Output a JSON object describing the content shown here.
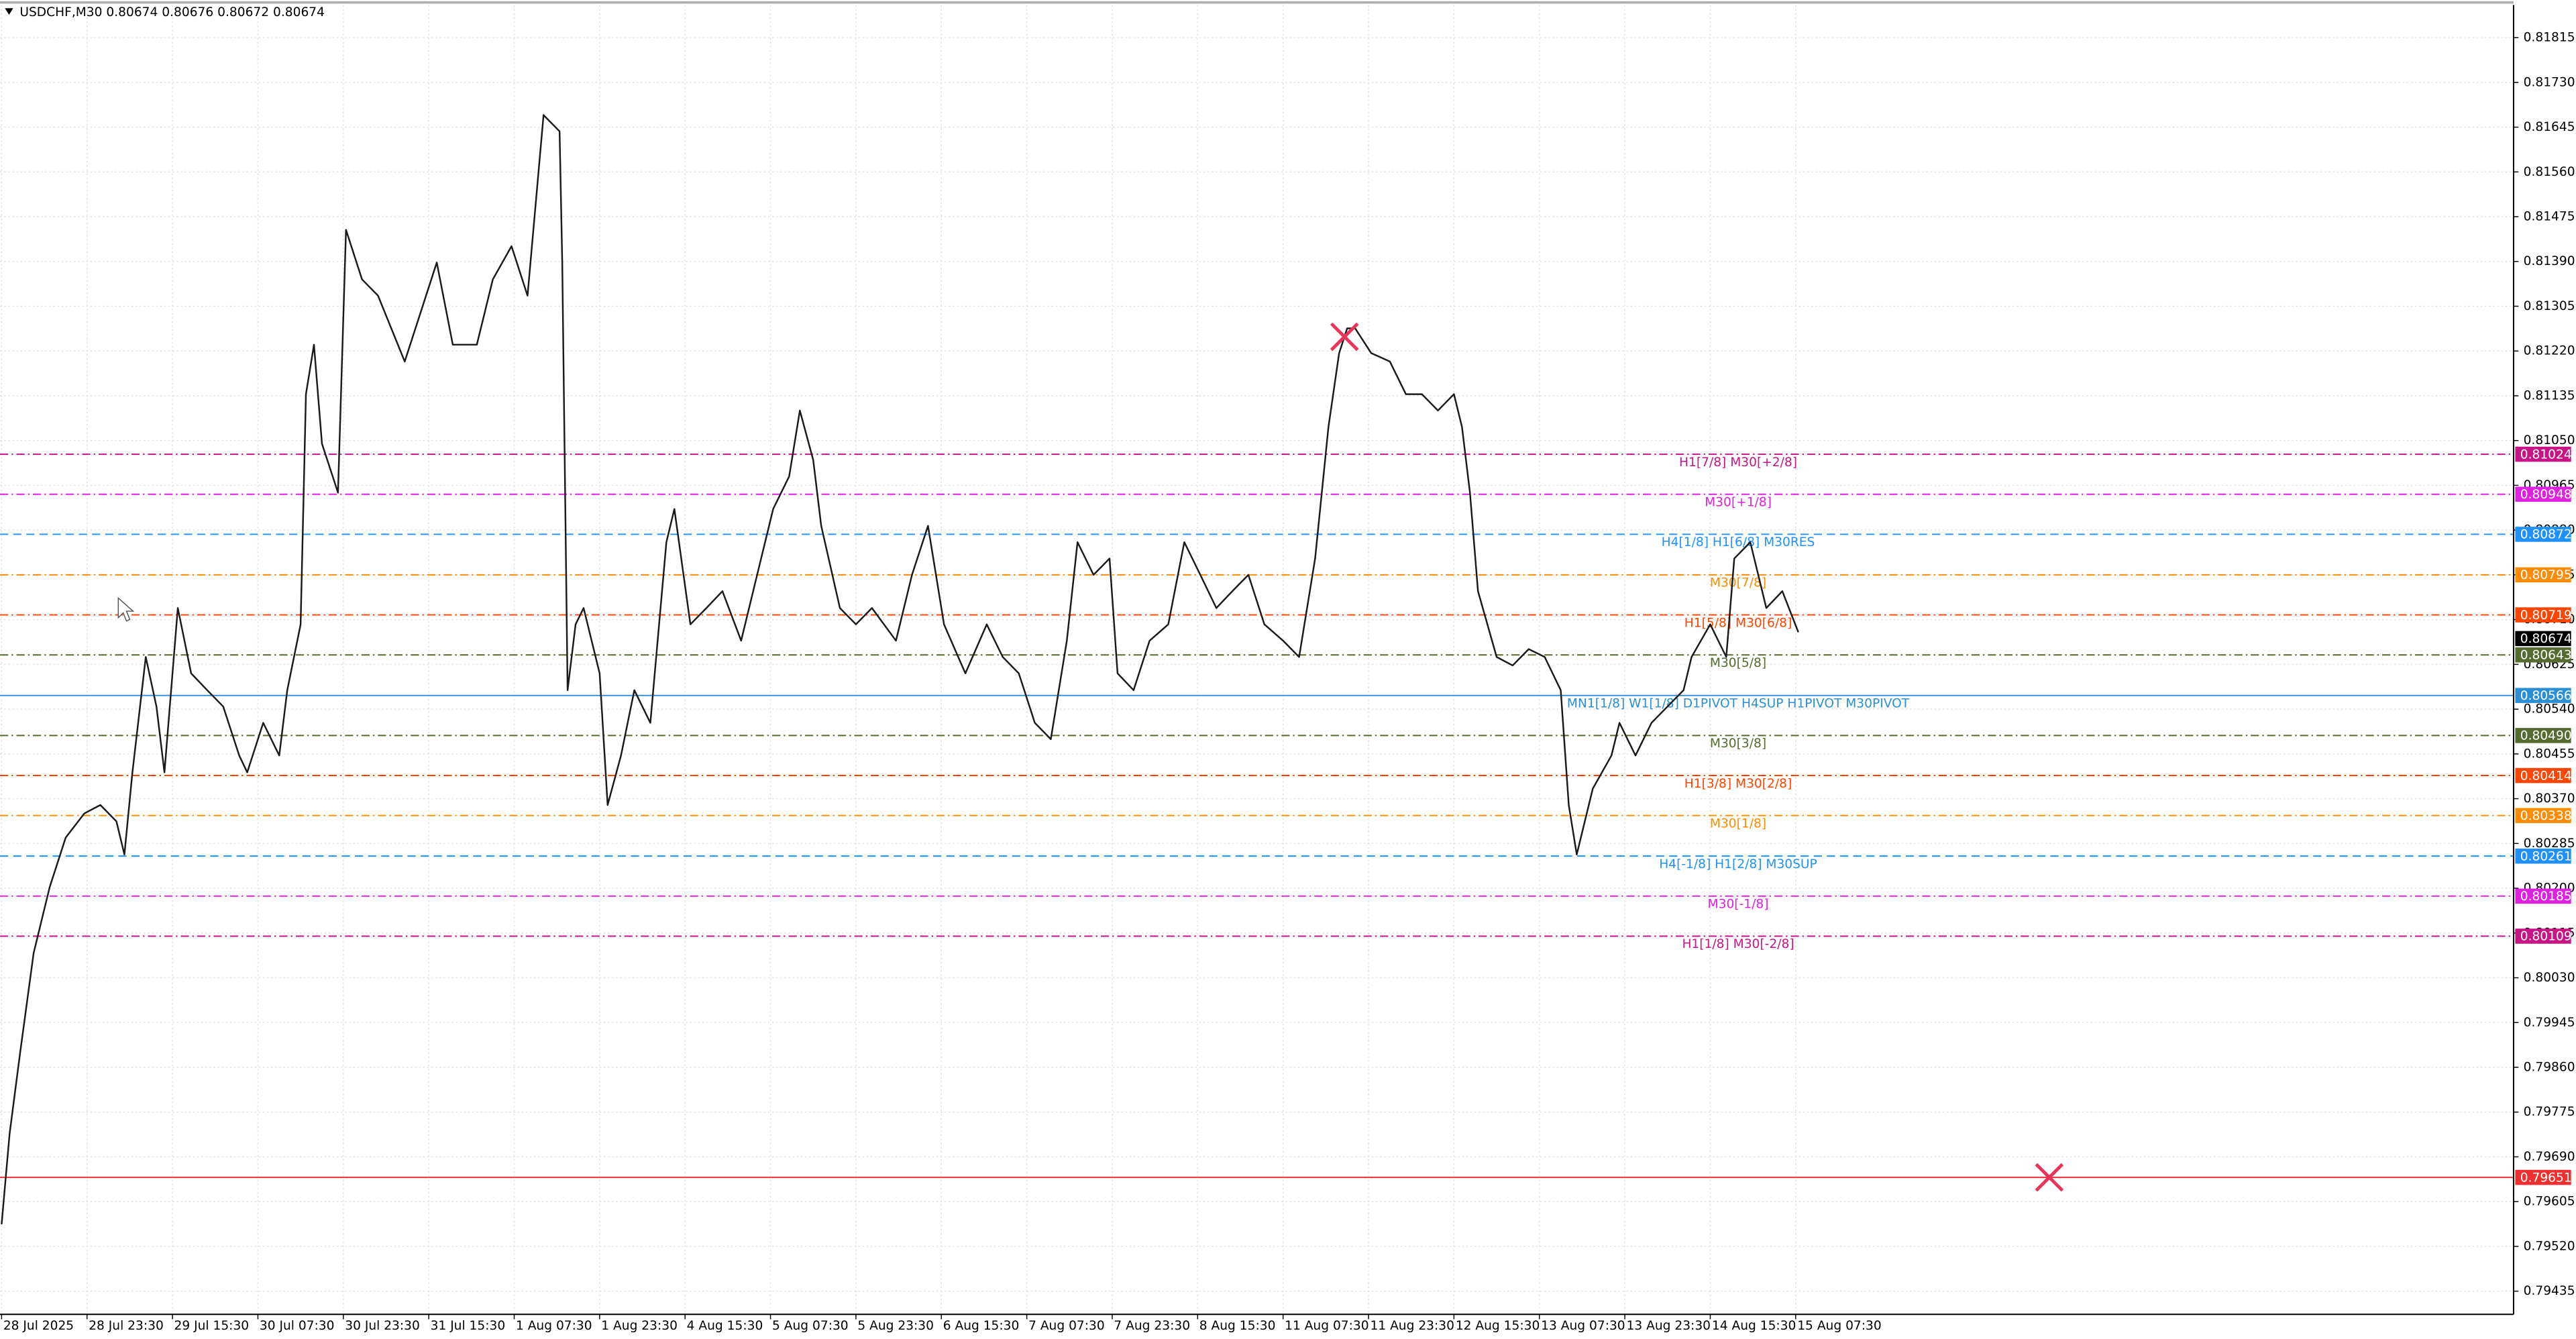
{
  "chart_data": {
    "type": "line",
    "title": "USDCHF,M30  0.80674 0.80676 0.80672 0.80674",
    "x": [
      -14,
      -11,
      -7,
      -2,
      4,
      10,
      17,
      23,
      29,
      32,
      35,
      40,
      44,
      47,
      52,
      57,
      63,
      69,
      75,
      78,
      84,
      90,
      93,
      98,
      100,
      103,
      106,
      112,
      115,
      121,
      127,
      137,
      143,
      149,
      155,
      164,
      170,
      177,
      183,
      189,
      195,
      196,
      198,
      201,
      204,
      210,
      213,
      218,
      223,
      229,
      235,
      238,
      244,
      250,
      256,
      263,
      269,
      275,
      281,
      285,
      290,
      293,
      300,
      306,
      312,
      321,
      327,
      333,
      339,
      347,
      355,
      361,
      367,
      373,
      379,
      385,
      389,
      395,
      401,
      404,
      410,
      416,
      423,
      429,
      435,
      441,
      447,
      453,
      459,
      466,
      472,
      478,
      483,
      487,
      490,
      493,
      499,
      506,
      512,
      518,
      524,
      530,
      533,
      536,
      539,
      546,
      552,
      558,
      564,
      570,
      573,
      576,
      582,
      589,
      592,
      598,
      604,
      610,
      616,
      619,
      626,
      632,
      635,
      641,
      647,
      653,
      659
    ],
    "series": [
      {
        "color": "#1a1a1a",
        "values": [
          0.79562,
          0.79734,
          0.7989,
          0.80077,
          0.80202,
          0.80296,
          0.80342,
          0.80358,
          0.80327,
          0.80264,
          0.8042,
          0.80639,
          0.80545,
          0.8042,
          0.80732,
          0.80608,
          0.80576,
          0.80545,
          0.80452,
          0.8042,
          0.80514,
          0.80452,
          0.80576,
          0.80701,
          0.81138,
          0.81232,
          0.81044,
          0.80951,
          0.8145,
          0.81356,
          0.81325,
          0.812,
          0.81294,
          0.81388,
          0.81232,
          0.81232,
          0.81356,
          0.81419,
          0.81325,
          0.81668,
          0.81637,
          0.81388,
          0.80576,
          0.80701,
          0.80732,
          0.80608,
          0.80358,
          0.80452,
          0.80576,
          0.80514,
          0.80857,
          0.8092,
          0.80701,
          0.80732,
          0.80764,
          0.8067,
          0.80795,
          0.8092,
          0.80982,
          0.81107,
          0.81013,
          0.80888,
          0.80732,
          0.80701,
          0.80732,
          0.8067,
          0.80795,
          0.80888,
          0.80701,
          0.80608,
          0.80701,
          0.80639,
          0.80608,
          0.80514,
          0.80483,
          0.8067,
          0.80857,
          0.80795,
          0.80826,
          0.80608,
          0.80576,
          0.8067,
          0.80701,
          0.80857,
          0.80795,
          0.80732,
          0.80764,
          0.80795,
          0.80701,
          0.8067,
          0.80639,
          0.80826,
          0.81076,
          0.81216,
          0.81263,
          0.81263,
          0.81216,
          0.812,
          0.81138,
          0.81138,
          0.81107,
          0.81138,
          0.81076,
          0.80951,
          0.80764,
          0.80639,
          0.80623,
          0.80654,
          0.80639,
          0.80576,
          0.80358,
          0.80264,
          0.80389,
          0.80452,
          0.80514,
          0.80452,
          0.80514,
          0.80545,
          0.80576,
          0.80639,
          0.80701,
          0.80639,
          0.80826,
          0.80857,
          0.80732,
          0.80764,
          0.80686
        ]
      }
    ],
    "xlim": [
      -14.6,
      926.9
    ],
    "ylim": [
      0.79391,
      0.81877
    ],
    "xticks": [
      {
        "value": -14,
        "label": "28 Jul 2025"
      },
      {
        "value": 18,
        "label": "28 Jul 23:30"
      },
      {
        "value": 50,
        "label": "29 Jul 15:30"
      },
      {
        "value": 82,
        "label": "30 Jul 07:30"
      },
      {
        "value": 114,
        "label": "30 Jul 23:30"
      },
      {
        "value": 146,
        "label": "31 Jul 15:30"
      },
      {
        "value": 178,
        "label": "1 Aug 07:30"
      },
      {
        "value": 210,
        "label": "1 Aug 23:30"
      },
      {
        "value": 242,
        "label": "4 Aug 15:30"
      },
      {
        "value": 274,
        "label": "5 Aug 07:30"
      },
      {
        "value": 306,
        "label": "5 Aug 23:30"
      },
      {
        "value": 338,
        "label": "6 Aug 15:30"
      },
      {
        "value": 370,
        "label": "7 Aug 07:30"
      },
      {
        "value": 402,
        "label": "7 Aug 23:30"
      },
      {
        "value": 434,
        "label": "8 Aug 15:30"
      },
      {
        "value": 466,
        "label": "11 Aug 07:30"
      },
      {
        "value": 498,
        "label": "11 Aug 23:30"
      },
      {
        "value": 530,
        "label": "12 Aug 15:30"
      },
      {
        "value": 562,
        "label": "13 Aug 07:30"
      },
      {
        "value": 594,
        "label": "13 Aug 23:30"
      },
      {
        "value": 626,
        "label": "14 Aug 15:30"
      },
      {
        "value": 658,
        "label": "15 Aug 07:30"
      }
    ],
    "yticks": [
      0.81815,
      {
        "value": 0.8173,
        "label": "0.81730"
      },
      0.81645,
      {
        "value": 0.8156,
        "label": "0.81560"
      },
      0.81475,
      {
        "value": 0.8139,
        "label": "0.81390"
      },
      0.81305,
      {
        "value": 0.8122,
        "label": "0.81220"
      },
      0.81135,
      {
        "value": 0.8105,
        "label": "0.81050"
      },
      0.80965,
      {
        "value": 0.8088,
        "label": "0.80880"
      },
      0.80795,
      {
        "value": 0.8071,
        "label": "0.80710"
      },
      0.80625,
      {
        "value": 0.8054,
        "label": "0.80540"
      },
      0.80455,
      {
        "value": 0.8037,
        "label": "0.80370"
      },
      0.80285,
      {
        "value": 0.802,
        "label": "0.80200"
      },
      0.80115,
      {
        "value": 0.8003,
        "label": "0.80030"
      },
      0.79945,
      {
        "value": 0.7986,
        "label": "0.79860"
      },
      0.79775,
      {
        "value": 0.7969,
        "label": "0.79690"
      },
      0.79605,
      {
        "value": 0.7952,
        "label": "0.79520"
      },
      0.79435
    ],
    "grid": true,
    "levels": [
      {
        "name": "H1[7/8] M30[+2/8]",
        "value": 0.81024,
        "color": "#c71585",
        "style": "dashdot"
      },
      {
        "name": "M30[+1/8]",
        "value": 0.80948,
        "color": "#e020e0",
        "style": "dashdot"
      },
      {
        "name": "H4[1/8] H1[6/8] M30RES",
        "value": 0.80872,
        "color": "#1e90ff",
        "style": "dashed"
      },
      {
        "name": "M30[7/8]",
        "value": 0.80795,
        "color": "#ff8c00",
        "style": "dashdot"
      },
      {
        "name": "H1[5/8] M30[6/8]",
        "value": 0.80719,
        "color": "#ff4500",
        "style": "dashdot"
      },
      {
        "name": "M30[5/8]",
        "value": 0.80643,
        "color": "#556b2f",
        "style": "dashdot"
      },
      {
        "name": "MN1[1/8] W1[1/8] D1PIVOT H4SUP H1PIVOT M30PIVOT",
        "value": 0.80566,
        "color": "#2b8fd6",
        "style": "solid"
      },
      {
        "name": "M30[3/8]",
        "value": 0.8049,
        "value_label": "0.80490",
        "color": "#556b2f",
        "style": "dashdot"
      },
      {
        "name": "H1[3/8] M30[2/8]",
        "value": 0.80414,
        "color": "#ff4500",
        "style": "dashdot"
      },
      {
        "name": "M30[1/8]",
        "value": 0.80338,
        "color": "#ff8c00",
        "style": "dashdot"
      },
      {
        "name": "H4[-1/8] H1[2/8] M30SUP",
        "value": 0.80261,
        "color": "#1e90ff",
        "style": "dashed"
      },
      {
        "name": "M30[-1/8]",
        "value": 0.80185,
        "color": "#e020e0",
        "style": "dashdot"
      },
      {
        "name": "H1[1/8] M30[-2/8]",
        "value": 0.80109,
        "color": "#c71585",
        "style": "dashdot"
      },
      {
        "value": 0.79651,
        "color": "#f03030",
        "style": "solid"
      }
    ],
    "last_price": {
      "value": 0.80674,
      "color": "#000000"
    },
    "markers": {
      "x": [
        489,
        753
      ],
      "y": [
        0.81247,
        0.79651
      ],
      "color": "#e8345a"
    }
  }
}
